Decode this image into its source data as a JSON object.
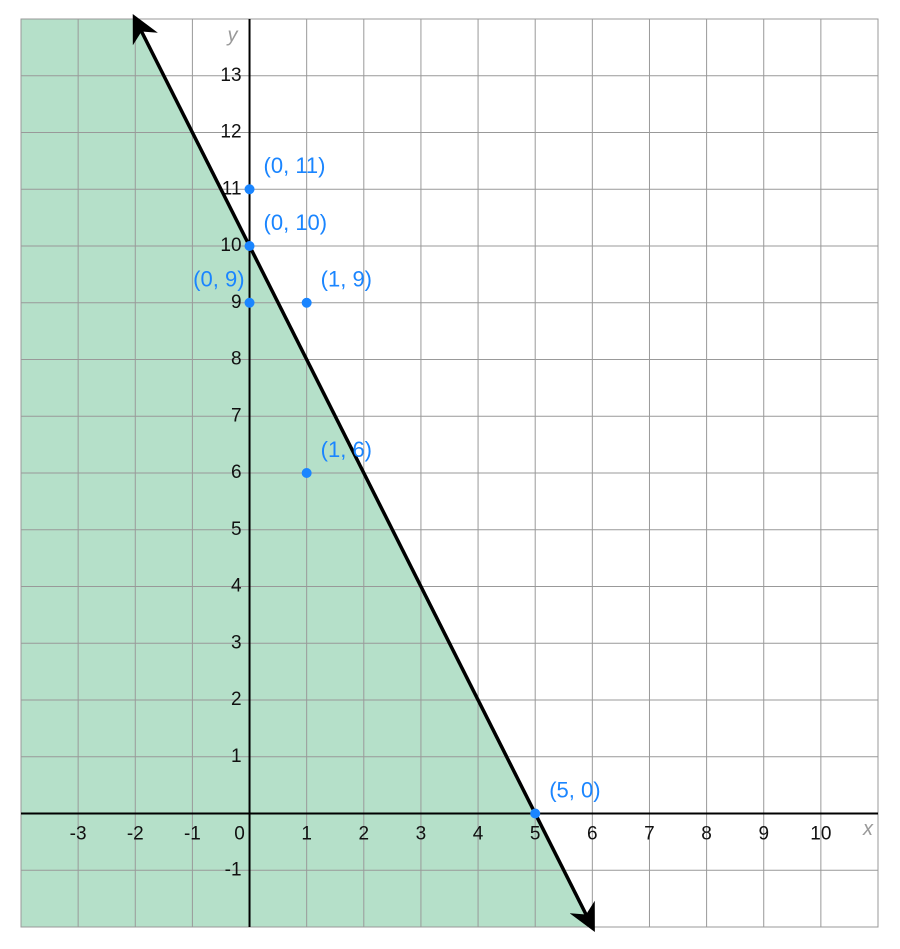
{
  "chart_data": {
    "type": "inequality",
    "x_label": "x",
    "y_label": "y",
    "xlim": [
      -4,
      11
    ],
    "ylim": [
      -2,
      14
    ],
    "xticks": [
      -3,
      -2,
      -1,
      0,
      1,
      2,
      3,
      4,
      5,
      6,
      7,
      8,
      9,
      10
    ],
    "yticks": [
      -1,
      1,
      2,
      3,
      4,
      5,
      6,
      7,
      8,
      9,
      10,
      11,
      12,
      13
    ],
    "grid": true,
    "boundary": {
      "x": [
        -2,
        6
      ],
      "values": [
        14,
        -2
      ],
      "color": "#000000",
      "shade_color": "#b5e0c9"
    },
    "points": {
      "x": [
        0,
        0,
        0,
        1,
        1,
        5
      ],
      "values": [
        11,
        10,
        9,
        9,
        6,
        0
      ],
      "labels": [
        "(0, 11)",
        "(0, 10)",
        "(0, 9)",
        "(1, 9)",
        "(1, 6)",
        "(5, 0)"
      ],
      "color": "#1a85ff"
    }
  }
}
